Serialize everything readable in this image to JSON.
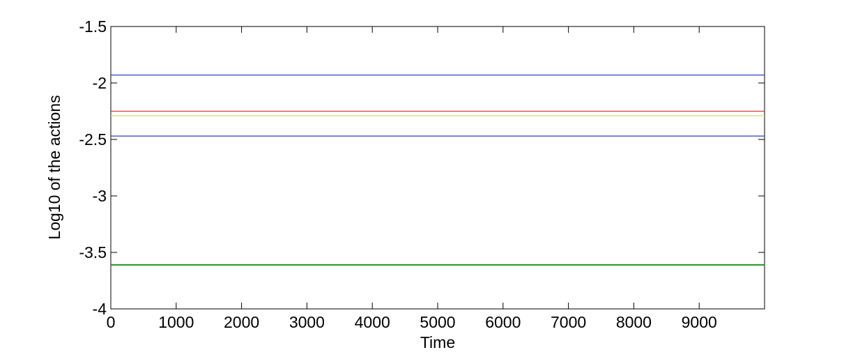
{
  "chart_data": {
    "type": "line",
    "x_label": "Time",
    "y_label": "Log10 of the actions",
    "xlim": [
      0,
      10000
    ],
    "xticks": [
      0,
      1000,
      2000,
      3000,
      4000,
      5000,
      6000,
      7000,
      8000,
      9000
    ],
    "ylim": [
      -4,
      -1.5
    ],
    "yticks": [
      -4,
      -3.5,
      -3,
      -2.5,
      -2,
      -1.5
    ],
    "x": [
      0,
      10000
    ],
    "series": [
      {
        "color": "#2a3fd6",
        "values": [
          -1.93,
          -1.93
        ]
      },
      {
        "color": "#d63c3c",
        "values": [
          -2.25,
          -2.25
        ]
      },
      {
        "color": "#c8e07a",
        "values": [
          -2.29,
          -2.29
        ]
      },
      {
        "color": "#2a3fd6",
        "values": [
          -2.47,
          -2.47
        ]
      },
      {
        "color": "#1a9a1a",
        "values": [
          -3.61,
          -3.61
        ]
      }
    ]
  }
}
